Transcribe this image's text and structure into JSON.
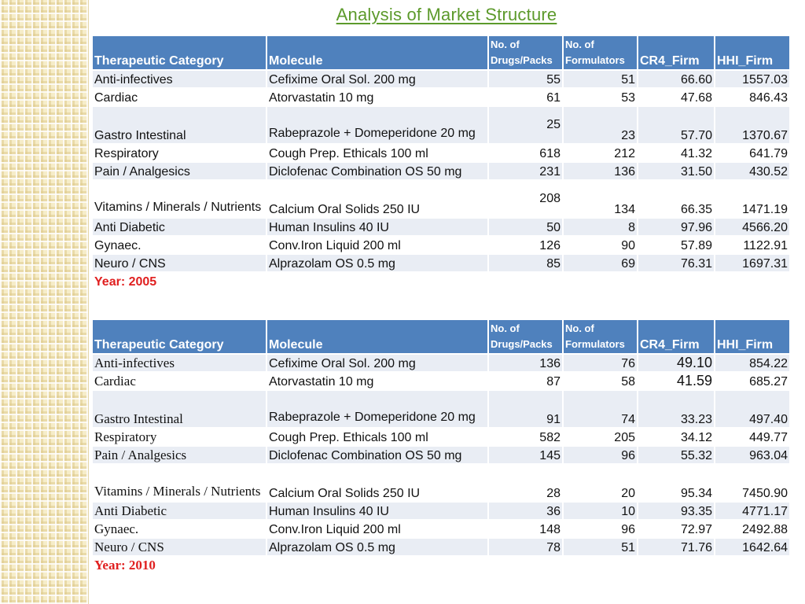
{
  "title": "Analysis of Market Structure",
  "headers": {
    "category": "Therapeutic Category",
    "molecule": "Molecule",
    "drugs_packs": "No. of Drugs/Packs",
    "formulators": "No. of Formulators",
    "cr4": "CR4_Firm",
    "hhi": "HHI_Firm"
  },
  "table2005": {
    "year_label": "Year: 2005",
    "rows": [
      {
        "category": "Anti-infectives",
        "molecule": "Cefixime Oral Sol. 200 mg",
        "drugs": "55",
        "formulators": "51",
        "cr4": "66.60",
        "hhi": "1557.03"
      },
      {
        "category": "Cardiac",
        "molecule": "Atorvastatin 10 mg",
        "drugs": "61",
        "formulators": "53",
        "cr4": "47.68",
        "hhi": "846.43"
      },
      {
        "category": "Gastro Intestinal",
        "molecule": "Rabeprazole + Domeperidone 20 mg",
        "drugs": "25",
        "formulators": "23",
        "cr4": "57.70",
        "hhi": "1370.67"
      },
      {
        "category": "Respiratory",
        "molecule": "Cough Prep. Ethicals 100 ml",
        "drugs": "618",
        "formulators": "212",
        "cr4": "41.32",
        "hhi": "641.79"
      },
      {
        "category": "Pain / Analgesics",
        "molecule": "Diclofenac Combination OS 50 mg",
        "drugs": "231",
        "formulators": "136",
        "cr4": "31.50",
        "hhi": "430.52"
      },
      {
        "category": "Vitamins / Minerals / Nutrients",
        "molecule": "Calcium Oral Solids 250 IU",
        "drugs": "208",
        "formulators": "134",
        "cr4": "66.35",
        "hhi": "1471.19"
      },
      {
        "category": "Anti Diabetic",
        "molecule": "Human Insulins 40 IU",
        "drugs": "50",
        "formulators": "8",
        "cr4": "97.96",
        "hhi": "4566.20"
      },
      {
        "category": "Gynaec.",
        "molecule": "Conv.Iron Liquid 200 ml",
        "drugs": "126",
        "formulators": "90",
        "cr4": "57.89",
        "hhi": "1122.91"
      },
      {
        "category": "Neuro / CNS",
        "molecule": "Alprazolam OS 0.5 mg",
        "drugs": "85",
        "formulators": "69",
        "cr4": "76.31",
        "hhi": "1697.31"
      }
    ]
  },
  "table2010": {
    "year_label": "Year: 2010",
    "rows": [
      {
        "category": "Anti-infectives",
        "molecule": "Cefixime Oral Sol. 200 mg",
        "drugs": "136",
        "formulators": "76",
        "cr4": "49.10",
        "hhi": "854.22"
      },
      {
        "category": "Cardiac",
        "molecule": "Atorvastatin 10 mg",
        "drugs": "87",
        "formulators": "58",
        "cr4": "41.59",
        "hhi": "685.27"
      },
      {
        "category": "Gastro Intestinal",
        "molecule": "Rabeprazole + Domeperidone 20 mg",
        "drugs": "91",
        "formulators": "74",
        "cr4": "33.23",
        "hhi": "497.40"
      },
      {
        "category": "Respiratory",
        "molecule": "Cough Prep. Ethicals 100 ml",
        "drugs": "582",
        "formulators": "205",
        "cr4": "34.12",
        "hhi": "449.77"
      },
      {
        "category": "Pain / Analgesics",
        "molecule": "Diclofenac Combination OS 50 mg",
        "drugs": "145",
        "formulators": "96",
        "cr4": "55.32",
        "hhi": "963.04"
      },
      {
        "category": "Vitamins / Minerals / Nutrients",
        "molecule": "Calcium Oral Solids 250 IU",
        "drugs": "28",
        "formulators": "20",
        "cr4": "95.34",
        "hhi": "7450.90"
      },
      {
        "category": "Anti Diabetic",
        "molecule": "Human Insulins 40 IU",
        "drugs": "36",
        "formulators": "10",
        "cr4": "93.35",
        "hhi": "4771.17"
      },
      {
        "category": "Gynaec.",
        "molecule": "Conv.Iron Liquid 200 ml",
        "drugs": "148",
        "formulators": "96",
        "cr4": "72.97",
        "hhi": "2492.88"
      },
      {
        "category": "Neuro / CNS",
        "molecule": "Alprazolam OS 0.5 mg",
        "drugs": "78",
        "formulators": "51",
        "cr4": "71.76",
        "hhi": "1642.64"
      }
    ]
  }
}
